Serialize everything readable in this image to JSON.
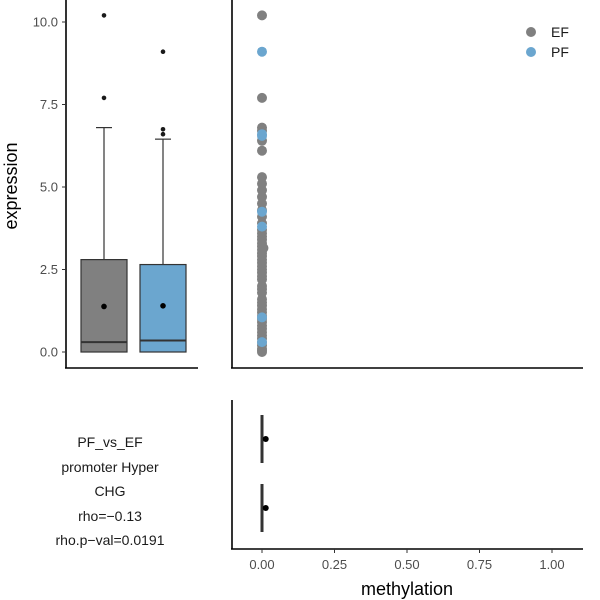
{
  "chart_data": [
    {
      "type": "box",
      "panel": "expression-boxplot",
      "ylabel": "expression",
      "ylim": [
        0,
        10.4
      ],
      "yticks": [
        "0.0",
        "2.5",
        "5.0",
        "7.5",
        "10.0"
      ],
      "series": [
        {
          "name": "EF",
          "color": "#808080",
          "min": 0.0,
          "q1": 0.0,
          "median": 0.3,
          "q3": 2.8,
          "whisker_high": 6.8,
          "mean": 1.38,
          "outliers": [
            7.7,
            10.2
          ]
        },
        {
          "name": "PF",
          "color": "#6ba6cf",
          "min": 0.0,
          "q1": 0.0,
          "median": 0.35,
          "q3": 2.65,
          "whisker_high": 6.45,
          "mean": 1.4,
          "outliers": [
            6.6,
            6.75,
            9.1
          ]
        }
      ]
    },
    {
      "type": "scatter",
      "panel": "expression-vs-methylation",
      "xlim": [
        -0.1,
        1.1
      ],
      "ylim": [
        0,
        10.4
      ],
      "legend_position": "top-right",
      "series": [
        {
          "name": "EF",
          "color": "#808080",
          "x": [
            0.0,
            0.0,
            0.0,
            0.0,
            0.0,
            0.0,
            0.0,
            0.0,
            0.0,
            0.0,
            0.0,
            0.0,
            0.0,
            0.0,
            0.0,
            0.0,
            0.0,
            0.0,
            0.0,
            0.0,
            0.0,
            0.0,
            0.0,
            0.0,
            0.0,
            0.0,
            0.0,
            0.0,
            0.0,
            0.0,
            0.0,
            0.0,
            0.0,
            0.0,
            0.0,
            0.0,
            0.0,
            0.0,
            0.0,
            0.0,
            0.0,
            0.0,
            0.0,
            0.0,
            0.0,
            0.005,
            0.0,
            0.0,
            0.0,
            0.0,
            0.0,
            0.0
          ],
          "y": [
            10.2,
            7.7,
            6.8,
            6.7,
            6.4,
            6.1,
            5.3,
            5.1,
            4.9,
            4.7,
            4.5,
            4.3,
            4.1,
            3.9,
            3.7,
            3.6,
            3.5,
            3.4,
            3.3,
            3.2,
            3.1,
            3.0,
            2.9,
            2.8,
            2.7,
            2.6,
            2.5,
            2.4,
            2.3,
            2.2,
            2.0,
            1.9,
            1.8,
            1.6,
            1.5,
            1.4,
            1.3,
            1.2,
            1.1,
            1.0,
            0.9,
            0.8,
            0.7,
            0.6,
            0.5,
            3.15,
            0.4,
            0.3,
            0.2,
            0.1,
            0.05,
            0.0
          ]
        },
        {
          "name": "PF",
          "color": "#6ba6cf",
          "x": [
            0.0,
            0.0,
            0.0,
            0.0,
            0.0,
            0.0,
            0.0
          ],
          "y": [
            9.1,
            6.6,
            6.55,
            4.25,
            3.8,
            1.05,
            0.3
          ]
        }
      ]
    },
    {
      "type": "box",
      "panel": "methylation-boxplot",
      "xlabel": "methylation",
      "xlim": [
        -0.1,
        1.1
      ],
      "xticks": [
        "0.00",
        "0.25",
        "0.50",
        "0.75",
        "1.00"
      ],
      "series": [
        {
          "name": "PF",
          "color": "#6ba6cf",
          "min": 0.0,
          "q1": 0.0,
          "median": 0.0,
          "q3": 0.0,
          "max": 0.0,
          "mean": 0.006
        },
        {
          "name": "EF",
          "color": "#808080",
          "min": 0.0,
          "q1": 0.0,
          "median": 0.0,
          "q3": 0.0,
          "max": 0.0,
          "mean": 0.006
        }
      ]
    }
  ],
  "annotation": {
    "line1": "PF_vs_EF",
    "line2": "promoter Hyper",
    "line3": "CHG",
    "line4": "rho=−0.13",
    "line5": "rho.p−val=0.0191"
  }
}
